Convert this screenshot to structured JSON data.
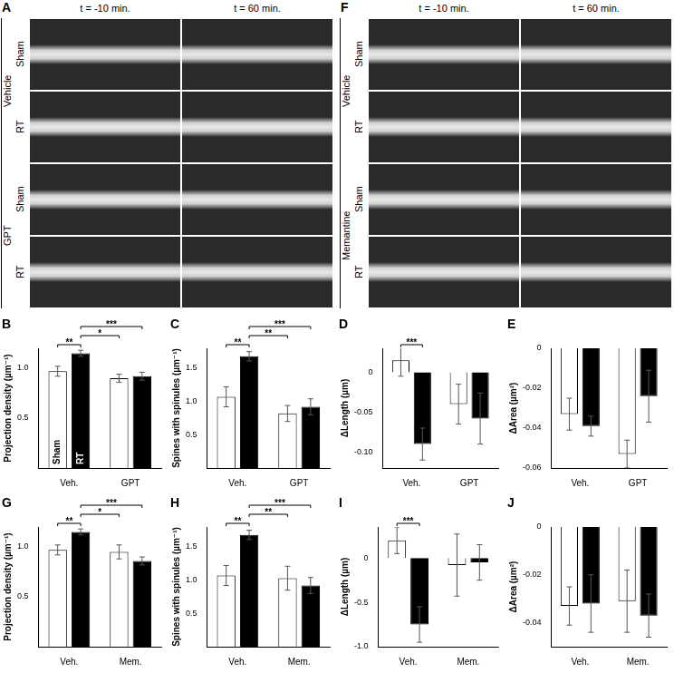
{
  "figure": {
    "image_panels": [
      {
        "panel": "A",
        "times": [
          "t = -10 min.",
          "t = 60 min."
        ],
        "groups": [
          {
            "label": "Vehicle",
            "rows": [
              "Sham",
              "RT"
            ]
          },
          {
            "label": "GPT",
            "rows": [
              "Sham",
              "RT"
            ]
          }
        ]
      },
      {
        "panel": "F",
        "times": [
          "t = -10 min.",
          "t = 60 min."
        ],
        "groups": [
          {
            "label": "Vehicle",
            "rows": [
              "Sham",
              "RT"
            ]
          },
          {
            "label": "Memantine",
            "rows": [
              "Sham",
              "RT"
            ]
          }
        ]
      }
    ]
  },
  "chart_data": [
    {
      "panel": "B",
      "type": "bar",
      "y_label": "Projection density (µm⁻¹)",
      "categories": [
        "Veh.",
        "GPT"
      ],
      "series": [
        {
          "name": "Sham",
          "color": "#ffffff",
          "values": [
            0.97,
            0.9
          ],
          "errors": [
            0.05,
            0.04
          ]
        },
        {
          "name": "RT",
          "color": "#000000",
          "values": [
            1.15,
            0.92
          ],
          "errors": [
            0.03,
            0.04
          ]
        }
      ],
      "ylim": [
        0,
        1.2
      ],
      "yticks": [
        0.5,
        {
          "value": 1,
          "label": "1.0"
        }
      ],
      "grid": false,
      "significance": [
        {
          "bars": [
            0,
            1
          ],
          "label": "**"
        },
        {
          "bars": [
            1,
            2
          ],
          "label": "*"
        },
        {
          "bars": [
            1,
            3
          ],
          "label": "***"
        }
      ]
    },
    {
      "panel": "C",
      "type": "bar",
      "y_label": "Spines with spinules (µm⁻¹)",
      "categories": [
        "Veh.",
        "GPT"
      ],
      "series": [
        {
          "color": "#ffffff",
          "values": [
            1.07,
            0.82
          ],
          "errors": [
            0.15,
            0.12
          ]
        },
        {
          "color": "#000000",
          "values": [
            1.68,
            0.92
          ],
          "errors": [
            0.07,
            0.12
          ]
        }
      ],
      "ylim": [
        0,
        1.8
      ],
      "yticks": [
        0.5,
        {
          "value": 1,
          "label": "1.0"
        },
        1.5
      ],
      "grid": false,
      "significance": [
        {
          "bars": [
            0,
            1
          ],
          "label": "**"
        },
        {
          "bars": [
            1,
            2
          ],
          "label": "**"
        },
        {
          "bars": [
            1,
            3
          ],
          "label": "***"
        }
      ]
    },
    {
      "panel": "D",
      "type": "bar",
      "y_label": "ΔLength (µm)",
      "categories": [
        "Veh.",
        "GPT"
      ],
      "series": [
        {
          "color": "#ffffff",
          "values": [
            0.015,
            -0.04
          ],
          "errors": [
            0.02,
            0.025
          ]
        },
        {
          "color": "#000000",
          "values": [
            -0.09,
            -0.058
          ],
          "errors": [
            0.02,
            0.032
          ]
        }
      ],
      "ylim": [
        -0.12,
        0.03
      ],
      "yticks": [
        {
          "value": -0.1,
          "label": "-0.10"
        },
        -0.05,
        0
      ],
      "grid": false,
      "significance": [
        {
          "bars": [
            0,
            1
          ],
          "label": "***"
        }
      ]
    },
    {
      "panel": "E",
      "type": "bar",
      "y_label": "ΔArea (µm²)",
      "categories": [
        "Veh.",
        "GPT"
      ],
      "series": [
        {
          "color": "#ffffff",
          "values": [
            -0.033,
            -0.053
          ],
          "errors": [
            0.008,
            0.007
          ]
        },
        {
          "color": "#000000",
          "values": [
            -0.039,
            -0.024
          ],
          "errors": [
            0.005,
            0.013
          ]
        }
      ],
      "ylim": [
        -0.06,
        0
      ],
      "yticks": [
        -0.06,
        -0.04,
        -0.02,
        0
      ],
      "grid": false,
      "significance": []
    },
    {
      "panel": "G",
      "type": "bar",
      "y_label": "Projection density (µm⁻¹)",
      "categories": [
        "Veh.",
        "Mem."
      ],
      "series": [
        {
          "color": "#ffffff",
          "values": [
            0.97,
            0.95
          ],
          "errors": [
            0.05,
            0.07
          ]
        },
        {
          "color": "#000000",
          "values": [
            1.15,
            0.86
          ],
          "errors": [
            0.03,
            0.04
          ]
        }
      ],
      "ylim": [
        0,
        1.2
      ],
      "yticks": [
        0.5,
        {
          "value": 1,
          "label": "1.0"
        }
      ],
      "grid": false,
      "significance": [
        {
          "bars": [
            0,
            1
          ],
          "label": "**"
        },
        {
          "bars": [
            1,
            2
          ],
          "label": "*"
        },
        {
          "bars": [
            1,
            3
          ],
          "label": "***"
        }
      ]
    },
    {
      "panel": "H",
      "type": "bar",
      "y_label": "Spines with spinules (µm⁻¹)",
      "categories": [
        "Veh.",
        "Mem."
      ],
      "series": [
        {
          "color": "#ffffff",
          "values": [
            1.07,
            1.03
          ],
          "errors": [
            0.15,
            0.18
          ]
        },
        {
          "color": "#000000",
          "values": [
            1.68,
            0.92
          ],
          "errors": [
            0.07,
            0.12
          ]
        }
      ],
      "ylim": [
        0,
        1.8
      ],
      "yticks": [
        0.5,
        {
          "value": 1,
          "label": "1.0"
        },
        1.5
      ],
      "grid": false,
      "significance": [
        {
          "bars": [
            0,
            1
          ],
          "label": "**"
        },
        {
          "bars": [
            1,
            2
          ],
          "label": "**"
        },
        {
          "bars": [
            1,
            3
          ],
          "label": "***"
        }
      ]
    },
    {
      "panel": "I",
      "type": "bar",
      "y_label": "ΔLength (µm)",
      "categories": [
        "Veh.",
        "Mem."
      ],
      "series": [
        {
          "color": "#ffffff",
          "values": [
            0.2,
            -0.08
          ],
          "errors": [
            0.15,
            0.35
          ]
        },
        {
          "color": "#000000",
          "values": [
            -0.75,
            -0.05
          ],
          "errors": [
            0.2,
            0.2
          ]
        }
      ],
      "ylim": [
        -1.0,
        0.35
      ],
      "yticks": [
        {
          "value": -1,
          "label": "-1.0"
        },
        -0.5,
        0
      ],
      "grid": false,
      "significance": [
        {
          "bars": [
            0,
            1
          ],
          "label": "***"
        }
      ]
    },
    {
      "panel": "J",
      "type": "bar",
      "y_label": "ΔArea (µm²)",
      "categories": [
        "Veh.",
        "Mem."
      ],
      "series": [
        {
          "color": "#ffffff",
          "values": [
            -0.033,
            -0.031
          ],
          "errors": [
            0.008,
            0.013
          ]
        },
        {
          "color": "#000000",
          "values": [
            -0.032,
            -0.037
          ],
          "errors": [
            0.012,
            0.009
          ]
        }
      ],
      "ylim": [
        -0.05,
        0
      ],
      "yticks": [
        -0.04,
        -0.02,
        0
      ],
      "grid": false,
      "significance": []
    }
  ]
}
